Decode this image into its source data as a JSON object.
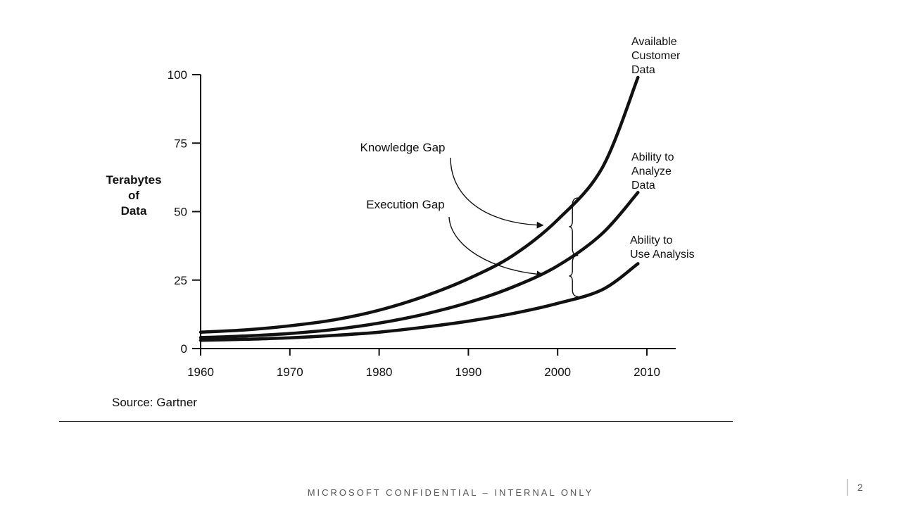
{
  "chart_data": {
    "type": "line",
    "ylabel": [
      "Terabytes",
      "of",
      "Data"
    ],
    "xlabel": "",
    "title": "",
    "xlim": [
      1960,
      2013
    ],
    "ylim": [
      0,
      100
    ],
    "x_ticks": [
      1960,
      1970,
      1980,
      1990,
      2000,
      2010
    ],
    "y_ticks": [
      0,
      25,
      50,
      75,
      100
    ],
    "series": [
      {
        "name": "Available Customer Data",
        "label_lines": [
          "Available",
          "Customer",
          "Data"
        ],
        "x": [
          1960,
          1965,
          1970,
          1975,
          1980,
          1985,
          1990,
          1995,
          2000,
          2005,
          2009
        ],
        "values": [
          6,
          6.8,
          8.3,
          10.5,
          14,
          19,
          25.5,
          34,
          47,
          66,
          99
        ]
      },
      {
        "name": "Ability to Analyze Data",
        "label_lines": [
          "Ability to",
          "Analyze",
          "Data"
        ],
        "x": [
          1960,
          1965,
          1970,
          1975,
          1980,
          1985,
          1990,
          1995,
          2000,
          2005,
          2009
        ],
        "values": [
          4,
          4.6,
          5.5,
          7,
          9.3,
          12.5,
          16.8,
          22.5,
          30.2,
          42,
          57
        ]
      },
      {
        "name": "Ability to Use Analysis",
        "label_lines": [
          "Ability to",
          "Use Analysis"
        ],
        "x": [
          1960,
          1965,
          1970,
          1975,
          1980,
          1985,
          1990,
          1995,
          2000,
          2005,
          2009
        ],
        "values": [
          3,
          3.4,
          3.9,
          4.8,
          6,
          7.8,
          10,
          12.8,
          16.5,
          21.5,
          31
        ]
      }
    ],
    "annotations": [
      {
        "text": "Knowledge Gap",
        "arrow_to": [
          1999,
          45
        ]
      },
      {
        "text": "Execution Gap",
        "arrow_to": [
          1999,
          27
        ]
      }
    ],
    "braces": [
      {
        "x": 2001.5,
        "y_from": 55,
        "y_to": 34
      },
      {
        "x": 2001.5,
        "y_from": 34,
        "y_to": 19
      }
    ],
    "source": "Source: Gartner",
    "grid": false,
    "legend": "none"
  },
  "footer": {
    "confidential": "MICROSOFT CONFIDENTIAL – INTERNAL ONLY",
    "page_number": "2"
  }
}
